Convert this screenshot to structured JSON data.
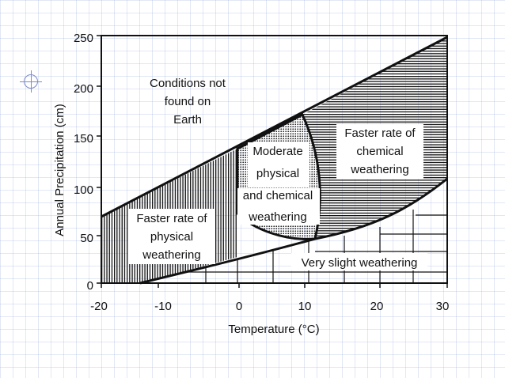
{
  "diagram": {
    "axes": {
      "x_label": "Temperature (°C)",
      "y_label": "Annual Precipitation (cm)",
      "x_ticks": [
        "-20",
        "-10",
        "0",
        "10",
        "20",
        "30"
      ],
      "y_ticks": [
        "0",
        "50",
        "100",
        "150",
        "200",
        "250"
      ]
    },
    "regions": {
      "conditions_not_found": [
        "Conditions not",
        "found on",
        "Earth"
      ],
      "physical": [
        "Faster rate of",
        "physical",
        "weathering"
      ],
      "moderate": [
        "Moderate",
        "physical",
        "and chemical",
        "weathering"
      ],
      "chemical": [
        "Faster rate of",
        "chemical",
        "weathering"
      ],
      "slight": [
        "Very slight weathering"
      ]
    },
    "colors": {
      "ink": "#111111",
      "grid_accent": "#96aadc"
    }
  }
}
